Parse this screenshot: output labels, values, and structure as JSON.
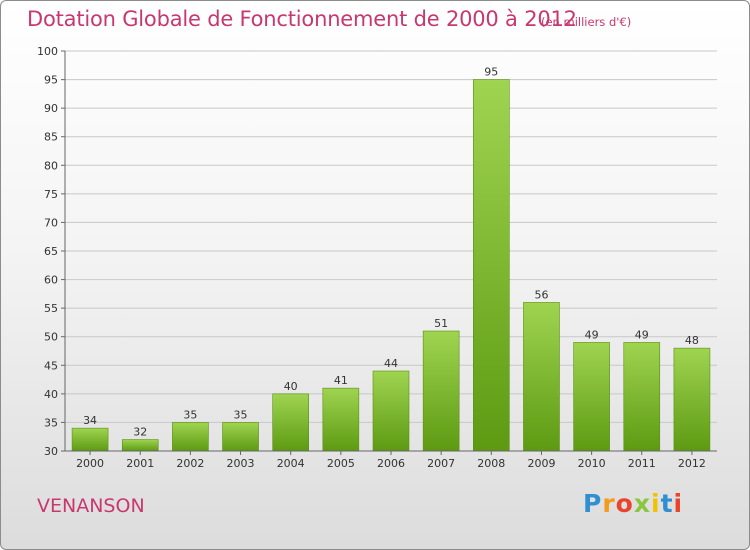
{
  "header": {
    "title": "Dotation Globale de Fonctionnement de 2000 à 2012",
    "unit": "(en milliers d'€)"
  },
  "footer": {
    "commune": "VENANSON",
    "logo_letters": [
      "P",
      "r",
      "o",
      "x",
      "i",
      "t",
      "i"
    ]
  },
  "colors": {
    "title": "#c8386f",
    "bar_top": "#9fd451",
    "bar_bottom": "#5d9a12",
    "grid": "#c8c8c8"
  },
  "chart_data": {
    "type": "bar",
    "categories": [
      "2000",
      "2001",
      "2002",
      "2003",
      "2004",
      "2005",
      "2006",
      "2007",
      "2008",
      "2009",
      "2010",
      "2011",
      "2012"
    ],
    "values": [
      34,
      32,
      35,
      35,
      40,
      41,
      44,
      51,
      95,
      56,
      49,
      49,
      48
    ],
    "ylim": [
      30,
      100
    ],
    "yticks": [
      30,
      35,
      40,
      45,
      50,
      55,
      60,
      65,
      70,
      75,
      80,
      85,
      90,
      95,
      100
    ],
    "grid": true,
    "title": "Dotation Globale de Fonctionnement de 2000 à 2012",
    "xlabel": "",
    "ylabel": ""
  }
}
